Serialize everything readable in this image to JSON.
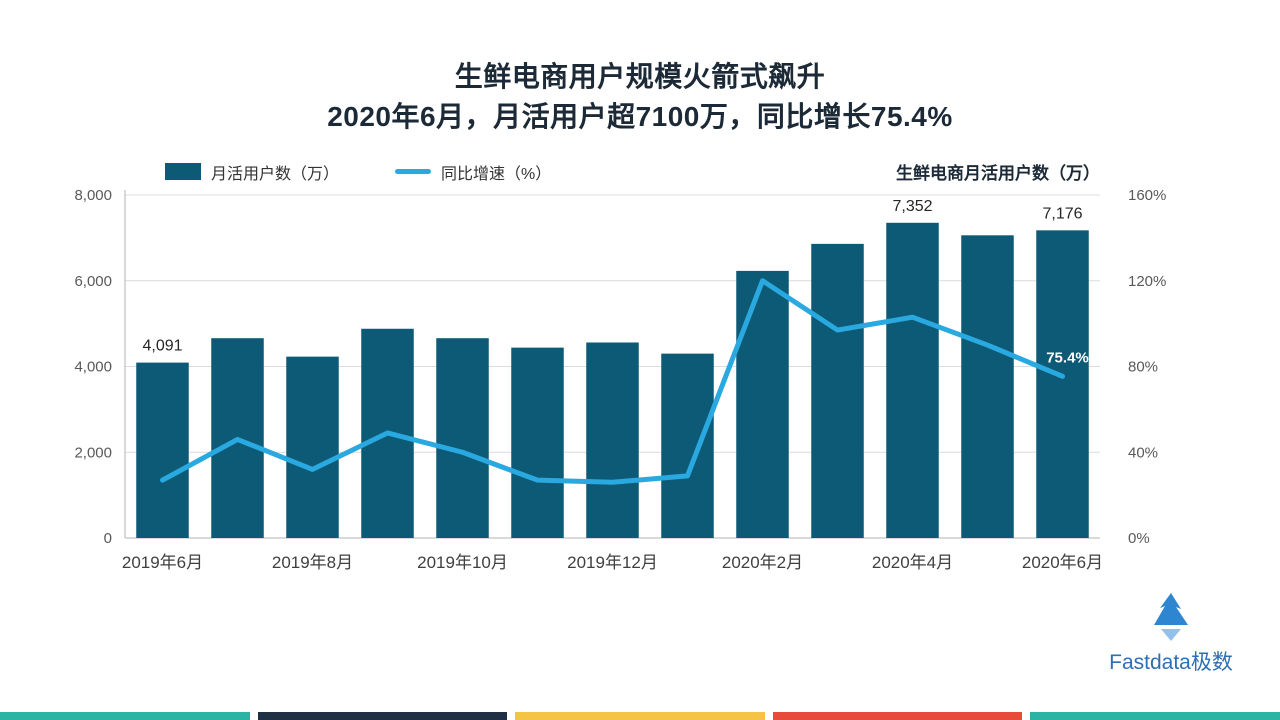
{
  "title": {
    "line1": "生鲜电商用户规模火箭式飙升",
    "line2": "2020年6月，月活用户超7100万，同比增长75.4%"
  },
  "legend": [
    {
      "label": "月活用户数（万）",
      "type": "bar",
      "color": "#0c5a75"
    },
    {
      "label": "同比增速（%）",
      "type": "line",
      "color": "#29a9e0"
    }
  ],
  "chart_annotation": "生鲜电商月活用户数（万）",
  "chart_data": {
    "type": "bar+line",
    "title": "生鲜电商月活用户数（万）",
    "categories": [
      "2019年6月",
      "2019年7月",
      "2019年8月",
      "2019年9月",
      "2019年10月",
      "2019年11月",
      "2019年12月",
      "2020年1月",
      "2020年2月",
      "2020年3月",
      "2020年4月",
      "2020年5月",
      "2020年6月"
    ],
    "x_ticks": [
      {
        "index": 0,
        "label": "2019年6月"
      },
      {
        "index": 2,
        "label": "2019年8月"
      },
      {
        "index": 4,
        "label": "2019年10月"
      },
      {
        "index": 6,
        "label": "2019年12月"
      },
      {
        "index": 8,
        "label": "2020年2月"
      },
      {
        "index": 10,
        "label": "2020年4月"
      },
      {
        "index": 12,
        "label": "2020年6月"
      }
    ],
    "series": [
      {
        "name": "月活用户数（万）",
        "type": "bar",
        "color": "#0c5a75",
        "values": [
          4091,
          4660,
          4230,
          4880,
          4660,
          4440,
          4560,
          4300,
          6230,
          6860,
          7352,
          7060,
          7176
        ],
        "data_labels": [
          {
            "index": 0,
            "text": "4,091"
          },
          {
            "index": 10,
            "text": "7,352"
          },
          {
            "index": 12,
            "text": "7,176"
          }
        ]
      },
      {
        "name": "同比增速（%）",
        "type": "line",
        "color": "#29a9e0",
        "values": [
          27,
          46,
          32,
          49,
          40,
          27,
          26,
          29,
          120,
          97,
          103,
          90,
          75.4
        ],
        "data_labels": [
          {
            "index": 12,
            "text": "75.4%"
          }
        ],
        "label_color": "#ffffff"
      }
    ],
    "y_left": {
      "min": 0,
      "max": 8000,
      "ticks": [
        "0",
        "2,000",
        "4,000",
        "6,000",
        "8,000"
      ]
    },
    "y_right": {
      "min": 0,
      "max": 160,
      "ticks": [
        "0%",
        "40%",
        "80%",
        "120%",
        "160%"
      ]
    },
    "grid": true,
    "legend_position": "top"
  },
  "footer": {
    "logo_text": "Fastdata极数",
    "logo_color": "#2d6fb5",
    "icon_color": "#2e86d0",
    "stripe_colors": [
      "#2bb3a4",
      "#1f3044",
      "#f6c445",
      "#e64b3c",
      "#2bb3a4"
    ]
  }
}
